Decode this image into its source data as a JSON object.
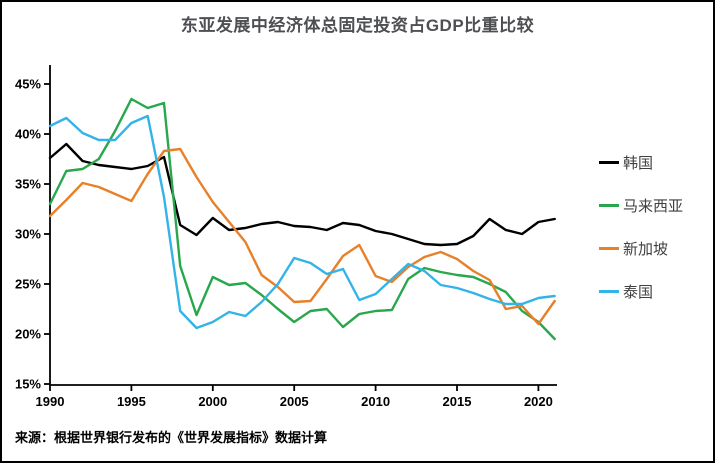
{
  "title": "东亚发展中经济体总固定投资占GDP比重比较",
  "source_note": "来源：根据世界银行发布的《世界发展指标》数据计算",
  "chart_data": {
    "type": "line",
    "title": "东亚发展中经济体总固定投资占GDP比重比较",
    "xlabel": "",
    "ylabel": "",
    "ylim": [
      15,
      45
    ],
    "grid": false,
    "legend_position": "right",
    "y_tick_suffix": "%",
    "y_ticks": [
      45,
      40,
      35,
      30,
      25,
      20,
      15
    ],
    "x_ticks": [
      1990,
      1995,
      2000,
      2005,
      2010,
      2015,
      2020
    ],
    "x": [
      1990,
      1991,
      1992,
      1993,
      1994,
      1995,
      1996,
      1997,
      1998,
      1999,
      2000,
      2001,
      2002,
      2003,
      2004,
      2005,
      2006,
      2007,
      2008,
      2009,
      2010,
      2011,
      2012,
      2013,
      2014,
      2015,
      2016,
      2017,
      2018,
      2019,
      2020,
      2021
    ],
    "series": [
      {
        "name": "韩国",
        "slug": "korea",
        "color": "#000000",
        "values": [
          37.6,
          39.0,
          37.3,
          36.9,
          36.7,
          36.5,
          36.8,
          37.7,
          30.9,
          29.9,
          31.6,
          30.4,
          30.6,
          31.0,
          31.2,
          30.8,
          30.7,
          30.4,
          31.1,
          30.9,
          30.3,
          30.0,
          29.5,
          29.0,
          28.9,
          29.0,
          29.8,
          31.5,
          30.4,
          30.0,
          31.2,
          31.5
        ]
      },
      {
        "name": "马来西亚",
        "slug": "malaysia",
        "color": "#28a74c",
        "values": [
          33.0,
          36.3,
          36.5,
          37.5,
          40.3,
          43.5,
          42.6,
          43.1,
          26.8,
          21.9,
          25.7,
          24.9,
          25.1,
          23.9,
          22.5,
          21.2,
          22.3,
          22.5,
          20.7,
          22.0,
          22.3,
          22.4,
          25.5,
          26.6,
          26.2,
          25.9,
          25.7,
          25.0,
          24.2,
          22.3,
          21.2,
          19.5
        ]
      },
      {
        "name": "新加坡",
        "slug": "singapore",
        "color": "#e8802a",
        "values": [
          31.8,
          33.4,
          35.1,
          34.7,
          34.0,
          33.3,
          36.0,
          38.3,
          38.5,
          35.7,
          33.2,
          31.2,
          29.2,
          25.9,
          24.7,
          23.2,
          23.3,
          25.5,
          27.8,
          28.9,
          25.8,
          25.2,
          26.7,
          27.7,
          28.2,
          27.5,
          26.3,
          25.4,
          22.5,
          22.8,
          21.0,
          23.3
        ]
      },
      {
        "name": "泰国",
        "slug": "thailand",
        "color": "#33b3e7",
        "values": [
          40.8,
          41.6,
          40.1,
          39.4,
          39.4,
          41.1,
          41.8,
          33.7,
          22.3,
          20.6,
          21.2,
          22.2,
          21.8,
          23.2,
          25.0,
          27.6,
          27.1,
          26.0,
          26.5,
          23.4,
          24.0,
          25.5,
          27.0,
          26.3,
          24.9,
          24.6,
          24.1,
          23.5,
          23.0,
          23.0,
          23.6,
          23.8
        ]
      }
    ]
  }
}
